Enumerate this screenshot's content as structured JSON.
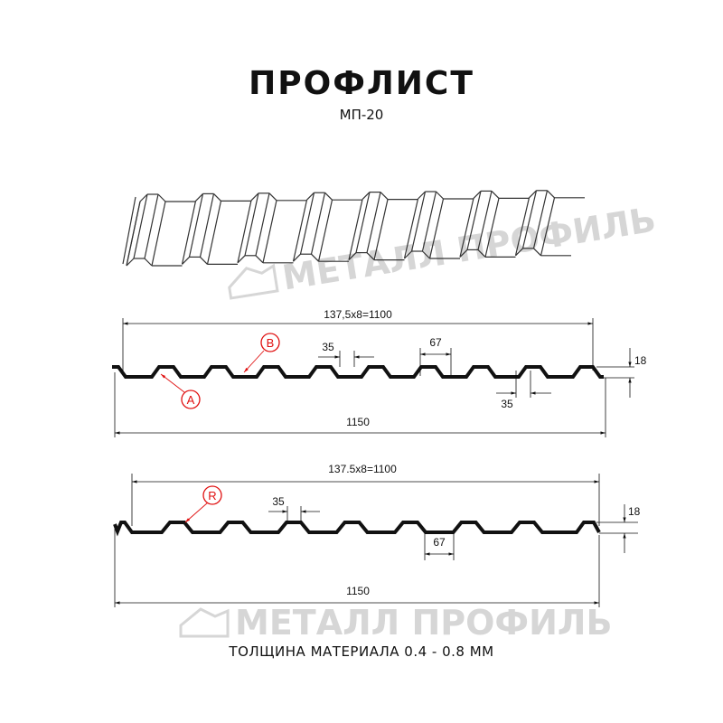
{
  "header": {
    "title": "ПРОФЛИСТ",
    "subtitle": "МП-20"
  },
  "watermark": {
    "text": "МЕТАЛЛ ПРОФИЛЬ"
  },
  "profile_a": {
    "pitch_label": "137,5x8=1100",
    "width_label": "1150",
    "crest_label": "35",
    "crest_label_bottom": "35",
    "trough_label": "67",
    "height_label": "18",
    "callout_a": "A",
    "callout_b": "B"
  },
  "profile_r": {
    "pitch_label": "137.5x8=1100",
    "width_label": "1150",
    "crest_label": "35",
    "trough_label": "67",
    "height_label": "18",
    "callout_r": "R"
  },
  "footer": {
    "thickness": "ТОЛЩИНА МАТЕРИАЛА 0.4 - 0.8 ММ"
  },
  "colors": {
    "line": "#111111",
    "callout": "#e01010",
    "watermark": "#d6d6d6"
  }
}
